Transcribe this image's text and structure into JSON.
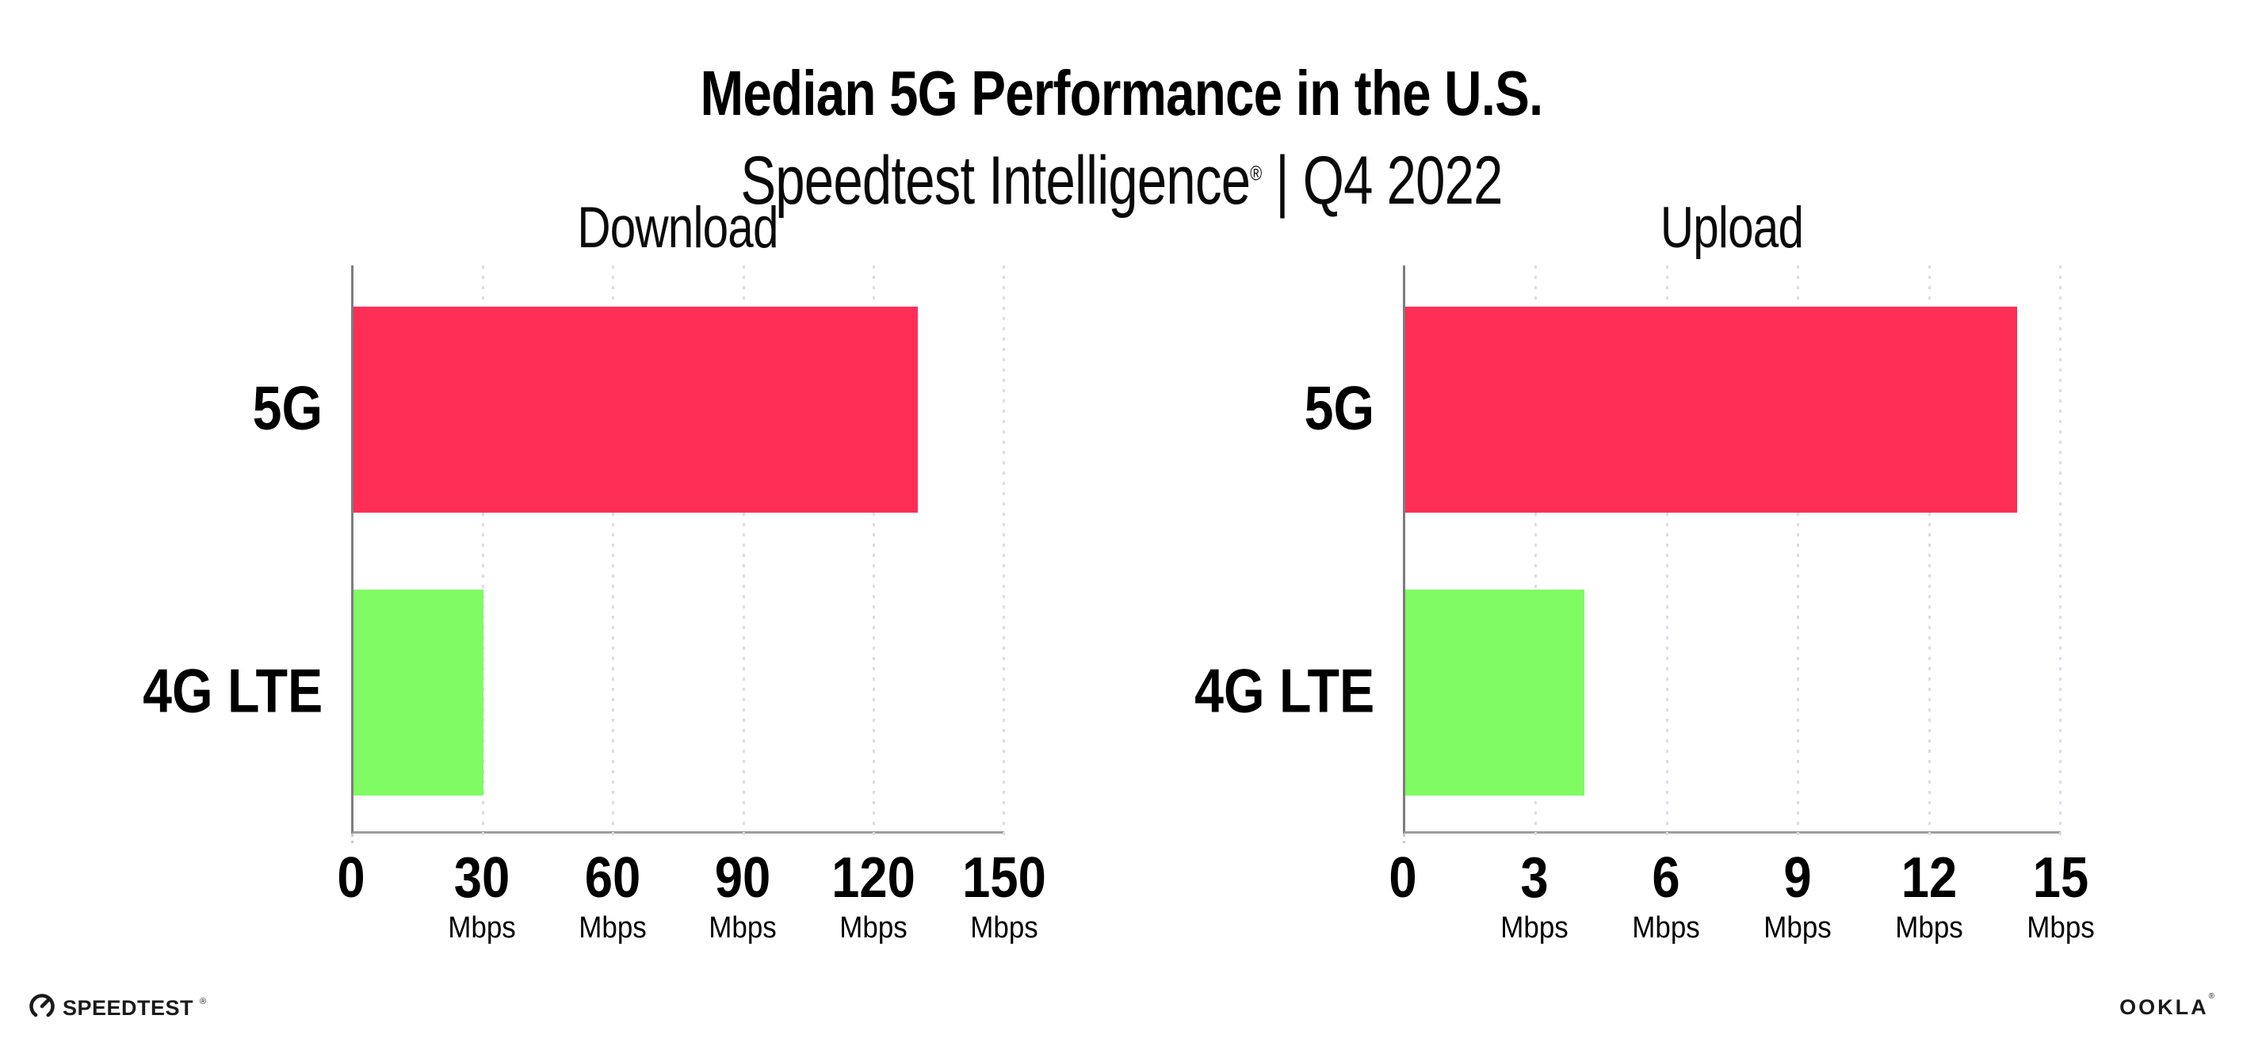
{
  "header": {
    "title": "Median 5G Performance in the U.S.",
    "subtitle_brand": "Speedtest Intelligence",
    "subtitle_reg": "®",
    "subtitle_rest": " | Q4 2022"
  },
  "chart_data": [
    {
      "type": "bar",
      "orientation": "horizontal",
      "title": "Download",
      "categories": [
        "5G",
        "4G LTE"
      ],
      "values": [
        130,
        30
      ],
      "unit": "Mbps",
      "xlim": [
        0,
        150
      ],
      "xticks": [
        0,
        30,
        60,
        90,
        120,
        150
      ],
      "bar_colors": [
        "#FF2E57",
        "#80FB64"
      ],
      "grid": "vertical-dotted",
      "legend": "none"
    },
    {
      "type": "bar",
      "orientation": "horizontal",
      "title": "Upload",
      "categories": [
        "5G",
        "4G LTE"
      ],
      "values": [
        14,
        4.1
      ],
      "unit": "Mbps",
      "xlim": [
        0,
        15
      ],
      "xticks": [
        0,
        3,
        6,
        9,
        12,
        15
      ],
      "bar_colors": [
        "#FF2E57",
        "#80FB64"
      ],
      "grid": "vertical-dotted",
      "legend": "none"
    }
  ],
  "styles": {
    "bar_5g": "#FF2E57",
    "bar_4g": "#80FB64",
    "axis_x": "#9E9E9E",
    "axis_y": "#7D7D7D",
    "gridline": "#DCDCE8",
    "text": "#000000"
  },
  "footer": {
    "speedtest_text": "SPEEDTEST",
    "speedtest_reg": "®",
    "ookla_text": "OOKLA",
    "ookla_reg": "®"
  }
}
